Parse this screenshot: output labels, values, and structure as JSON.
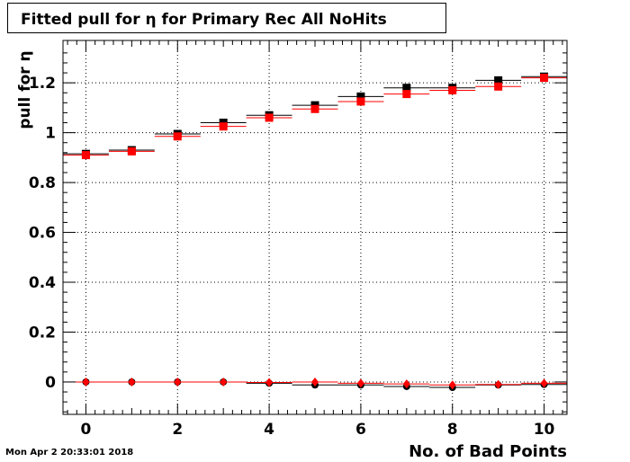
{
  "chart_data": {
    "type": "scatter",
    "title": "Fitted pull for  η for Primary Rec All NoHits",
    "xlabel": "No. of Bad Points",
    "ylabel": "pull for  η",
    "xlim": [
      -0.5,
      10.5
    ],
    "ylim": [
      -0.13,
      1.37
    ],
    "x_ticks": [
      0,
      2,
      4,
      6,
      8,
      10
    ],
    "y_ticks": [
      0,
      0.2,
      0.4,
      0.6,
      0.8,
      1,
      1.2
    ],
    "x_tick_labels": [
      "0",
      "2",
      "4",
      "6",
      "8",
      "10"
    ],
    "y_tick_labels": [
      "0",
      "0.2",
      "0.4",
      "0.6",
      "0.8",
      "1",
      "1.2"
    ],
    "grid": true,
    "x": [
      0,
      1,
      2,
      3,
      4,
      5,
      6,
      7,
      8,
      9,
      10
    ],
    "series": [
      {
        "marker": "square",
        "color": "#000000",
        "values": [
          0.915,
          0.93,
          0.995,
          1.04,
          1.07,
          1.11,
          1.145,
          1.18,
          1.18,
          1.21,
          1.225
        ]
      },
      {
        "marker": "square",
        "color": "#ff0000",
        "values": [
          0.91,
          0.925,
          0.985,
          1.025,
          1.06,
          1.095,
          1.125,
          1.155,
          1.17,
          1.185,
          1.22
        ]
      },
      {
        "marker": "circle",
        "color": "#000000",
        "values": [
          0.0,
          0.0,
          0.0,
          0.0,
          -0.005,
          -0.012,
          -0.012,
          -0.018,
          -0.022,
          -0.012,
          -0.01
        ]
      },
      {
        "marker": "diamond",
        "color": "#ff0000",
        "values": [
          0.0,
          0.0,
          0.0,
          0.0,
          -0.002,
          0.0,
          -0.005,
          -0.008,
          -0.012,
          -0.01,
          -0.005
        ]
      }
    ]
  },
  "footer": {
    "timestamp": "Mon Apr  2 20:33:01 2018"
  }
}
